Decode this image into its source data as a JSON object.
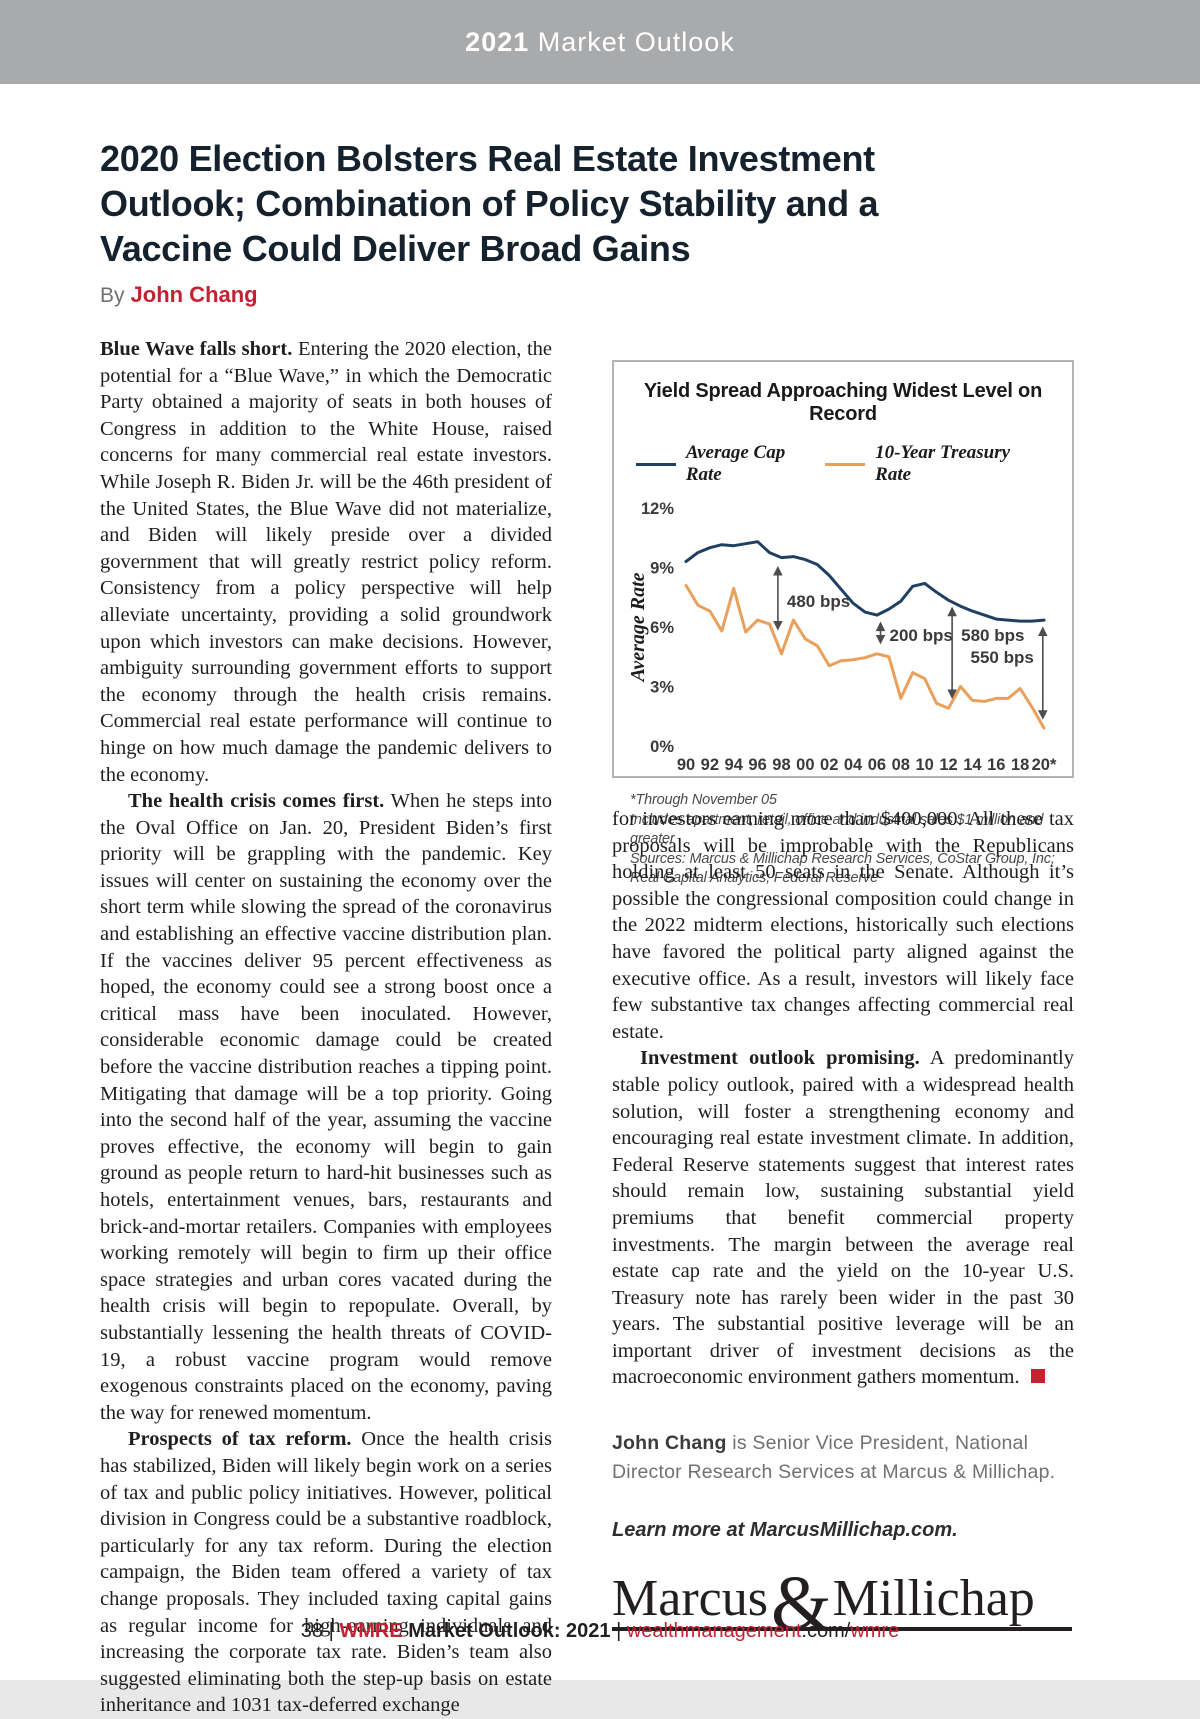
{
  "colors": {
    "red": "#c32231",
    "navy": "#1f3f63",
    "orange": "#e9a05a",
    "header_gray": "#a9aaac",
    "title_dark": "#15222e",
    "body_text": "#1e1e1c",
    "gray_text": "#707175",
    "border_gray": "#b3b4b6",
    "tick_text": "#3a3a3c",
    "logo_dark": "#231f20"
  },
  "header": {
    "year": "2021",
    "rest": " Market Outlook"
  },
  "article": {
    "title_lines": [
      "2020 Election Bolsters Real Estate Investment",
      "Outlook; Combination of Policy Stability and a",
      "Vaccine Could Deliver Broad Gains"
    ],
    "byline_prefix": "By",
    "byline_author": "John Chang",
    "left_paragraphs": [
      {
        "lead": "Blue Wave falls short.",
        "text": "Entering the 2020 election, the potential for a “Blue Wave,” in which the Democratic Party obtained a majority of seats in both houses of Congress in addition to the White House, raised concerns for many commercial real estate investors. While Joseph R. Biden Jr. will be the 46th president of the United States, the Blue Wave did not materialize, and Biden will likely preside over a divided government that will greatly restrict policy reform. Consistency from a policy perspective will help alleviate uncertainty, providing a solid groundwork upon which investors can make decisions. However, ambiguity surrounding government efforts to support the economy through the health crisis remains. Commercial real estate performance will continue to hinge on how much damage the pandemic delivers to the economy."
      },
      {
        "lead": "The health crisis comes first.",
        "text": "When he steps into the Oval Office on Jan. 20, President Biden’s first priority will be grappling with the pandemic. Key issues will center on sustaining the economy over the short term while slowing the spread of the coronavirus and establishing an effective vaccine distribution plan. If the vaccines deliver 95 percent effectiveness as hoped, the economy could see a strong boost once a critical mass have been inoculated. However, considerable economic damage could be created before the vaccine distribution reaches a tipping point. Mitigating that damage will be a top priority. Going into the second half of the year, assuming the vaccine proves effective, the economy will begin to gain ground as people return to hard-hit businesses such as hotels, entertainment venues, bars, restaurants and brick-and-mortar retailers. Companies with employees working remotely will begin to firm up their office space strategies and urban cores vacated during the health crisis will begin to repopulate. Overall, by substantially lessening the health threats of COVID-19, a robust vaccine program would remove exogenous constraints placed on the economy, paving the way for renewed momentum."
      },
      {
        "lead": "Prospects of tax reform.",
        "text": "Once the health crisis has stabilized, Biden will likely begin work on a series of tax and public policy initiatives. However, political division in Congress could be a substantive roadblock, particularly for any tax reform. During the election campaign, the Biden team offered a variety of tax change proposals. They included taxing capital gains as regular income for high-earning individuals and increasing the corporate tax rate. Biden’s team also suggested eliminating both the step-up basis on estate inheritance and 1031 tax-deferred exchange"
      }
    ],
    "right_paragraphs": [
      {
        "lead": "",
        "text": "for investors earning more than $400,000. All these tax proposals will be improbable with the Republicans holding at least 50 seats in the Senate. Although it’s possible the congressional composition could change in the 2022 midterm elections, historically such elections have favored the political party aligned against the executive office. As a result, investors will likely face few substantive tax changes affecting commercial real estate."
      },
      {
        "lead": "Investment outlook promising.",
        "text": "A predominantly stable policy outlook, paired with a widespread health solution, will foster a strengthening economy and encouraging real estate investment climate. In addition, Federal Reserve statements suggest that interest rates should remain low, sustaining substantial yield premiums that benefit commercial property investments. The margin between the average real estate cap rate and the yield on the 10-year U.S. Treasury note has rarely been wider in the past 30 years. The substantial positive leverage will be an important driver of investment decisions as the macroeconomic environment gathers momentum."
      }
    ]
  },
  "chart_data": {
    "type": "line",
    "title": "Yield Spread Approaching Widest Level on Record",
    "ylabel": "Average Rate",
    "x_range": [
      1990,
      2020
    ],
    "x_tick_step": 2,
    "x_tick_labels": [
      "90",
      "92",
      "94",
      "96",
      "98",
      "00",
      "02",
      "04",
      "06",
      "08",
      "10",
      "12",
      "14",
      "16",
      "18",
      "20*"
    ],
    "ylim": [
      0,
      12
    ],
    "y_ticks": [
      0,
      3,
      6,
      9,
      12
    ],
    "y_tick_labels": [
      "0%",
      "3%",
      "6%",
      "9%",
      "12%"
    ],
    "grid": false,
    "legend_position": "top",
    "series": [
      {
        "name": "Average Cap Rate",
        "color": "#1f3f63",
        "values": [
          9.3,
          9.75,
          10.0,
          10.15,
          10.1,
          10.2,
          10.3,
          9.75,
          9.5,
          9.55,
          9.4,
          9.15,
          8.6,
          7.9,
          7.2,
          6.75,
          6.6,
          6.9,
          7.3,
          8.05,
          8.2,
          7.75,
          7.35,
          7.05,
          6.8,
          6.6,
          6.4,
          6.35,
          6.3,
          6.3,
          6.35
        ]
      },
      {
        "name": "10-Year Treasury Rate",
        "color": "#e9a05a",
        "values": [
          8.1,
          7.1,
          6.8,
          5.8,
          7.95,
          5.75,
          6.35,
          6.15,
          4.65,
          6.35,
          5.4,
          5.05,
          4.05,
          4.3,
          4.35,
          4.45,
          4.65,
          4.5,
          2.4,
          3.7,
          3.4,
          2.15,
          1.9,
          3.0,
          2.3,
          2.25,
          2.4,
          2.4,
          2.9,
          1.95,
          0.9
        ]
      }
    ],
    "annotations": [
      {
        "label": "480 bps",
        "year": 1997.7,
        "from": 9.25,
        "to": 5.65,
        "label_side": "right",
        "label_y": 7.3
      },
      {
        "label": "200 bps",
        "year": 2006.3,
        "from": 6.45,
        "to": 4.95,
        "label_side": "right",
        "label_y": 5.6
      },
      {
        "label": "580 bps",
        "year": 2012.3,
        "from": 7.2,
        "to": 2.2,
        "label_side": "right",
        "label_y": 5.6
      },
      {
        "label": "550 bps",
        "year": 2019.9,
        "from": 6.2,
        "to": 1.15,
        "label_side": "left",
        "label_y": 4.5
      }
    ],
    "footnotes": [
      "*Through November 05",
      "Includes apartment, retail, office and industrial sales $1 million and greater",
      "Sources: Marcus & Millichap Research Services, CoStar Group, Inc;",
      "Real Capital Analytics; Federal Reserve"
    ]
  },
  "bio": {
    "author": "John Chang",
    "rest": " is Senior Vice President, National Director Research Services at Marcus & Millichap."
  },
  "learn_more": "Learn more at MarcusMillichap.com.",
  "logo": {
    "part1": "Marcus",
    "amp": "&",
    "part2": "Millichap"
  },
  "footer": {
    "page": "38",
    "sep1": " | ",
    "brand": "WMRE",
    "issue": " Market Outlook: 2021",
    "sep2": " | ",
    "site": "wealthmanagement",
    "domain": ".com/",
    "path": "wmre"
  }
}
